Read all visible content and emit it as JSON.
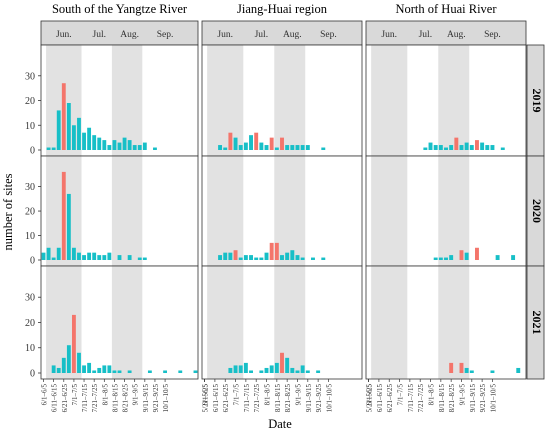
{
  "chart_data": {
    "type": "bar",
    "ylabel": "number of sites",
    "xlabel": "Date",
    "ylim": [
      0,
      38
    ],
    "yticks": [
      0,
      10,
      20,
      30
    ],
    "grid": false,
    "regions": [
      "South of the Yangtze River",
      "Jiang-Huai region",
      "North of Huai River"
    ],
    "years": [
      "2019",
      "2020",
      "2021"
    ],
    "month_labels": [
      "Jun.",
      "Jul.",
      "Aug.",
      "Sep."
    ],
    "colors": {
      "normal": "#17bfc7",
      "peak": "#f4756b",
      "shade": "#e2e2e2",
      "strip": "#d9d9d9"
    },
    "region_x_labels": [
      [
        "6/1–6/5",
        "6/11–6/15",
        "6/21–6/25",
        "7/1–7/5",
        "7/11–7/15",
        "7/21–7/25",
        "8/1–8/5",
        "8/11–8/15",
        "8/21–8/25",
        "9/1–9/5",
        "9/11–9/15",
        "9/21–9/25",
        "10/1–10/5"
      ],
      [
        "5/21–5/25",
        "6/1–6/5",
        "6/11–6/15",
        "6/21–6/25",
        "7/1–7/5",
        "7/11–7/15",
        "7/21–7/25",
        "8/1–8/5",
        "8/11–8/15",
        "8/21–8/25",
        "9/1–9/5",
        "9/11–9/15",
        "9/21–9/25",
        "10/1–10/5"
      ],
      [
        "5/21–5/25",
        "6/1–6/5",
        "6/11–6/15",
        "6/21–6/25",
        "7/1–7/5",
        "7/11–7/15",
        "7/21–7/25",
        "8/1–8/5",
        "8/11–8/15",
        "8/21–8/25",
        "9/1–9/5",
        "9/11–9/15",
        "9/21–9/25",
        "10/1–10/5"
      ]
    ],
    "panels": [
      {
        "region": 0,
        "year": "2019",
        "values": [
          0,
          1,
          1,
          16,
          27,
          19,
          10,
          13,
          7,
          9,
          6,
          5,
          4,
          2,
          4,
          3,
          5,
          4,
          2,
          2,
          3,
          0,
          1,
          0,
          0,
          0,
          0,
          0,
          0,
          0,
          0
        ],
        "peak_indices": [
          4
        ]
      },
      {
        "region": 1,
        "year": "2019",
        "values": [
          0,
          0,
          0,
          2,
          1,
          7,
          5,
          2,
          3,
          6,
          7,
          3,
          2,
          5,
          1,
          5,
          2,
          2,
          2,
          2,
          2,
          0,
          0,
          1,
          0,
          0,
          0,
          0,
          0,
          0,
          0
        ],
        "peak_indices": [
          5,
          10,
          13,
          15
        ]
      },
      {
        "region": 2,
        "year": "2019",
        "values": [
          0,
          0,
          0,
          0,
          0,
          0,
          0,
          0,
          0,
          0,
          0,
          1,
          3,
          2,
          2,
          1,
          2,
          5,
          2,
          3,
          2,
          4,
          3,
          2,
          2,
          0,
          1,
          0,
          0,
          0,
          0
        ],
        "peak_indices": [
          17,
          21
        ]
      },
      {
        "region": 0,
        "year": "2020",
        "values": [
          3,
          5,
          1,
          5,
          36,
          27,
          5,
          3,
          2,
          3,
          3,
          2,
          2,
          3,
          0,
          2,
          0,
          2,
          0,
          1,
          1,
          0,
          0,
          0,
          0,
          0,
          0,
          0,
          0,
          0,
          0
        ],
        "peak_indices": [
          4
        ]
      },
      {
        "region": 1,
        "year": "2020",
        "values": [
          0,
          0,
          0,
          2,
          3,
          3,
          4,
          1,
          2,
          2,
          1,
          1,
          3,
          7,
          7,
          2,
          3,
          4,
          2,
          1,
          0,
          1,
          0,
          1,
          0,
          0,
          0,
          0,
          0,
          0,
          0
        ],
        "peak_indices": [
          6,
          13,
          14
        ]
      },
      {
        "region": 2,
        "year": "2020",
        "values": [
          0,
          0,
          0,
          0,
          0,
          0,
          0,
          0,
          0,
          0,
          0,
          0,
          0,
          1,
          1,
          1,
          2,
          0,
          4,
          3,
          0,
          5,
          0,
          0,
          0,
          2,
          0,
          0,
          2,
          0,
          0
        ],
        "peak_indices": [
          18,
          21
        ]
      },
      {
        "region": 0,
        "year": "2021",
        "values": [
          0,
          0,
          3,
          2,
          6,
          11,
          23,
          8,
          3,
          4,
          1,
          2,
          3,
          3,
          1,
          1,
          0,
          1,
          0,
          0,
          0,
          1,
          0,
          0,
          1,
          0,
          0,
          1,
          0,
          0,
          1
        ],
        "peak_indices": [
          6
        ]
      },
      {
        "region": 1,
        "year": "2021",
        "values": [
          0,
          0,
          0,
          0,
          0,
          2,
          3,
          3,
          4,
          1,
          0,
          1,
          2,
          3,
          4,
          8,
          6,
          2,
          1,
          3,
          1,
          0,
          1,
          0,
          0,
          0,
          0,
          0,
          0,
          0,
          0
        ],
        "peak_indices": [
          15
        ]
      },
      {
        "region": 2,
        "year": "2021",
        "values": [
          0,
          0,
          0,
          0,
          0,
          0,
          0,
          0,
          0,
          0,
          0,
          0,
          0,
          0,
          0,
          0,
          4,
          0,
          4,
          2,
          1,
          0,
          0,
          0,
          1,
          0,
          0,
          0,
          0,
          2,
          0
        ],
        "peak_indices": [
          16,
          18
        ]
      }
    ]
  }
}
